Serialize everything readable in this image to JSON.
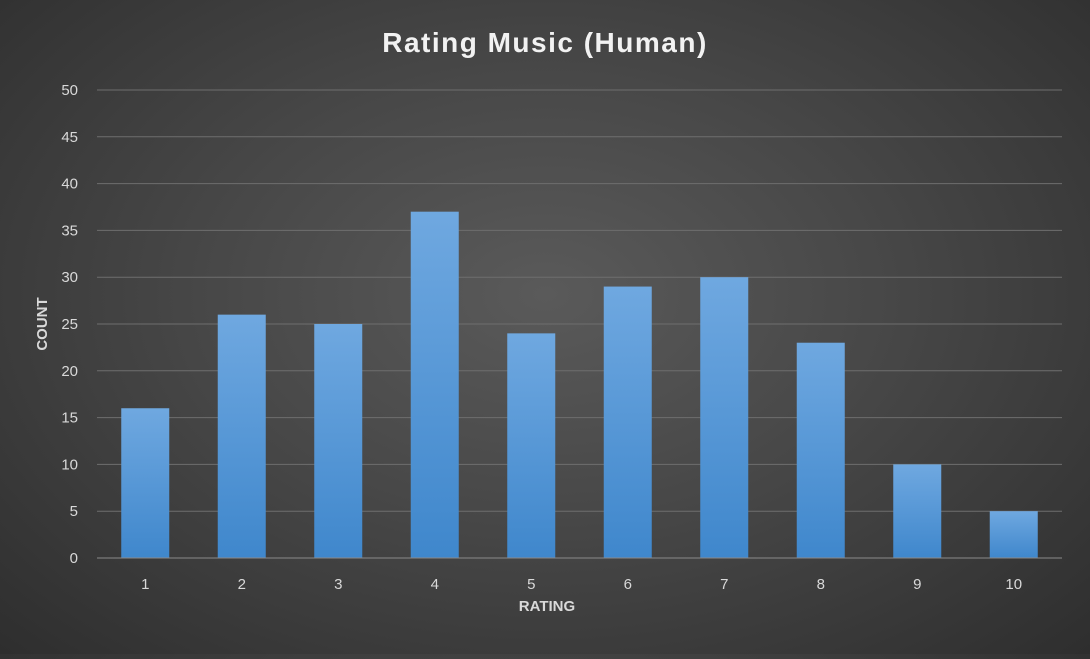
{
  "chart_data": {
    "type": "bar",
    "title": "Rating Music (Human)",
    "xlabel": "RATING",
    "ylabel": "COUNT",
    "categories": [
      "1",
      "2",
      "3",
      "4",
      "5",
      "6",
      "7",
      "8",
      "9",
      "10"
    ],
    "values": [
      16,
      26,
      25,
      37,
      24,
      29,
      30,
      23,
      10,
      5
    ],
    "ylim": [
      0,
      50
    ],
    "yticks": [
      0,
      5,
      10,
      15,
      20,
      25,
      30,
      35,
      40,
      45,
      50
    ],
    "grid": true,
    "legend": "none",
    "colors": {
      "bar_top": "#6fa8e0",
      "bar_bottom": "#3f87cc"
    }
  }
}
